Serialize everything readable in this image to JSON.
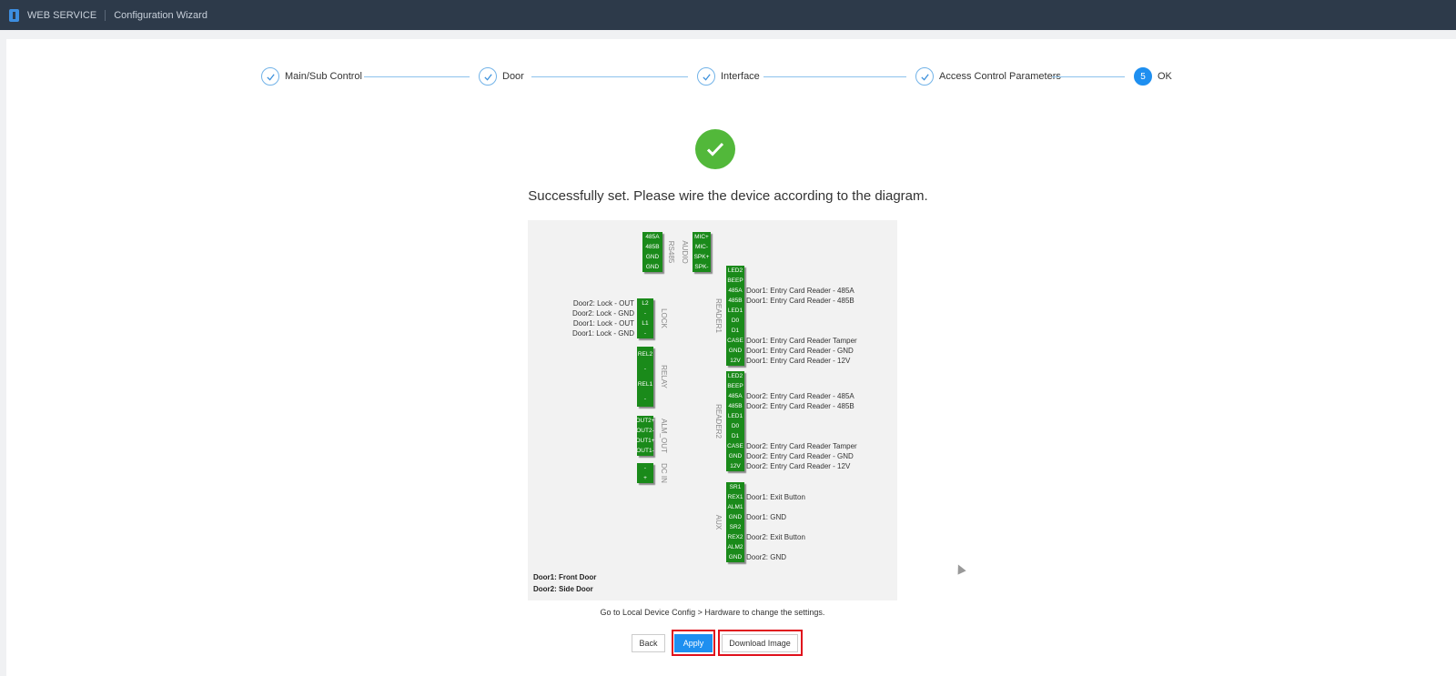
{
  "header": {
    "brand": "WEB SERVICE",
    "title": "Configuration Wizard"
  },
  "steps": [
    {
      "label": "Main/Sub Control",
      "state": "done"
    },
    {
      "label": "Door",
      "state": "done"
    },
    {
      "label": "Interface",
      "state": "done"
    },
    {
      "label": "Access Control Parameters",
      "state": "done"
    },
    {
      "label": "OK",
      "state": "current",
      "number": "5"
    }
  ],
  "message": "Successfully set. Please wire the device according to the diagram.",
  "diagram": {
    "blocks": [
      {
        "name": "RS485",
        "pins": [
          "485A",
          "485B",
          "GND",
          "GND"
        ],
        "labels": []
      },
      {
        "name": "AUDIO",
        "pins": [
          "MIC+",
          "MIC-",
          "SPK+",
          "SPK-"
        ],
        "labels": []
      },
      {
        "name": "LOCK",
        "pins": [
          "L2",
          "-",
          "L1",
          "-"
        ],
        "labels": [
          "Door2: Lock - OUT",
          "Door2: Lock - GND",
          "Door1: Lock - OUT",
          "Door1: Lock - GND"
        ]
      },
      {
        "name": "RELAY",
        "pins": [
          "REL2",
          "-",
          "REL1",
          "-"
        ],
        "labels": []
      },
      {
        "name": "ALM_OUT",
        "pins": [
          "OUT2+",
          "OUT2-",
          "OUT1+",
          "OUT1-"
        ],
        "labels": []
      },
      {
        "name": "DC IN",
        "pins": [
          "-",
          "+"
        ],
        "labels": []
      },
      {
        "name": "READER1",
        "pins": [
          "LED2",
          "BEEP",
          "485A",
          "485B",
          "LED1",
          "D0",
          "D1",
          "CASE",
          "GND",
          "12V"
        ],
        "labels": [
          "",
          "",
          "Door1: Entry Card Reader - 485A",
          "Door1: Entry Card Reader - 485B",
          "",
          "",
          "",
          "Door1: Entry Card Reader Tamper",
          "Door1: Entry Card Reader - GND",
          "Door1: Entry Card Reader - 12V"
        ]
      },
      {
        "name": "READER2",
        "pins": [
          "LED2",
          "BEEP",
          "485A",
          "485B",
          "LED1",
          "D0",
          "D1",
          "CASE",
          "GND",
          "12V"
        ],
        "labels": [
          "",
          "",
          "Door2: Entry Card Reader - 485A",
          "Door2: Entry Card Reader - 485B",
          "",
          "",
          "",
          "Door2: Entry Card Reader Tamper",
          "Door2: Entry Card Reader - GND",
          "Door2: Entry Card Reader - 12V"
        ]
      },
      {
        "name": "AUX",
        "pins": [
          "SR1",
          "REX1",
          "ALM1",
          "GND",
          "SR2",
          "REX2",
          "ALM2",
          "GND"
        ],
        "labels": [
          "",
          "Door1: Exit Button",
          "",
          "Door1: GND",
          "",
          "Door2: Exit Button",
          "",
          "Door2: GND"
        ]
      }
    ],
    "legend": [
      "Door1: Front Door",
      "Door2: Side Door"
    ]
  },
  "note": "Go to Local Device Config > Hardware to change the settings.",
  "buttons": {
    "back": "Back",
    "apply": "Apply",
    "download": "Download Image"
  },
  "colors": {
    "accent": "#1e8ff0",
    "success": "#52b83a",
    "terminal": "#1a8a1a",
    "highlight": "#e0101c"
  }
}
